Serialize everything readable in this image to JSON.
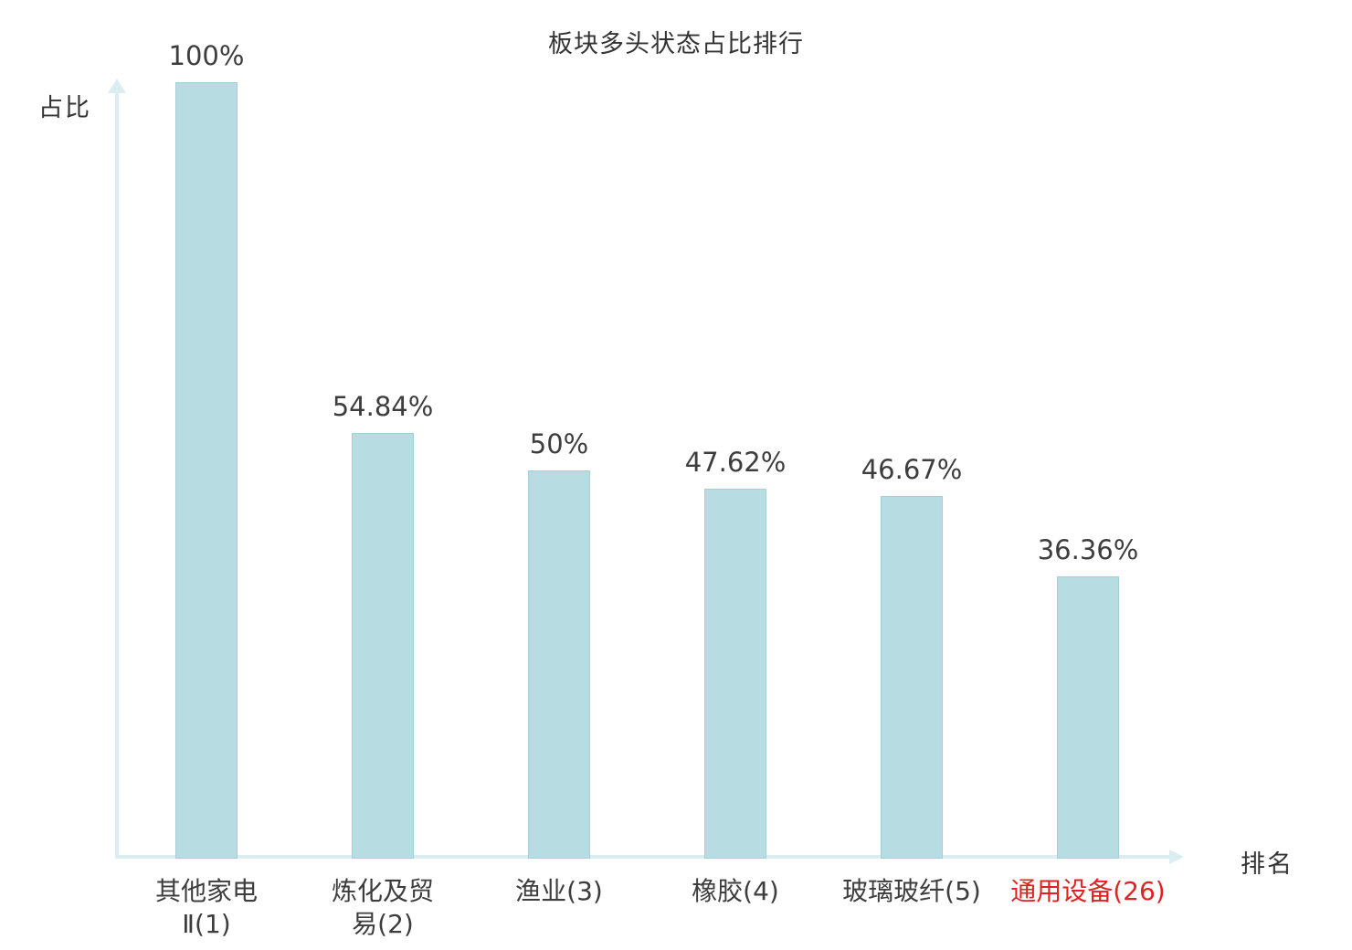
{
  "chart_data": {
    "type": "bar",
    "title": "板块多头状态占比排行",
    "xlabel": "排名",
    "ylabel": "占比",
    "categories": [
      "其他家电Ⅱ(1)",
      "炼化及贸易(2)",
      "渔业(3)",
      "橡胶(4)",
      "玻璃玻纤(5)",
      "通用设备(26)"
    ],
    "category_lines": [
      [
        "其他家电",
        "Ⅱ(1)"
      ],
      [
        "炼化及贸",
        "易(2)"
      ],
      [
        "渔业(3)"
      ],
      [
        "橡胶(4)"
      ],
      [
        "玻璃玻纤(5)"
      ],
      [
        "通用设备(26)"
      ]
    ],
    "values": [
      100,
      54.84,
      50,
      47.62,
      46.67,
      36.36
    ],
    "value_labels": [
      "100%",
      "54.84%",
      "50%",
      "47.62%",
      "46.67%",
      "36.36%"
    ],
    "ylim": [
      0,
      100
    ],
    "grid": false,
    "legend": "none",
    "highlight_index": 5,
    "colors": {
      "bar_fill": "#b7dce1",
      "bar_border": "#a5cfd6",
      "axis": "#daeef1",
      "label": "#3d3d3d",
      "highlight_label": "#e02222",
      "background": "#ffffff"
    }
  }
}
